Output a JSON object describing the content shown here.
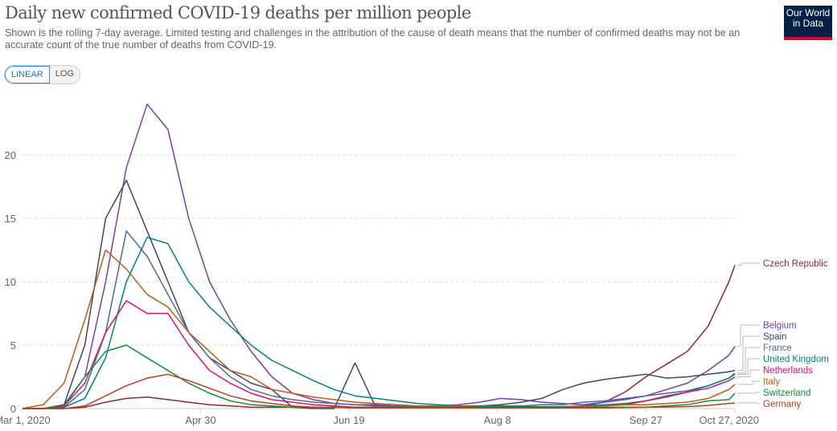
{
  "header": {
    "title": "Daily new confirmed COVID-19 deaths per million people",
    "subtitle": "Shown is the rolling 7-day average. Limited testing and challenges in the attribution of the cause of death means that the number of confirmed deaths may not be an accurate count of the true number of deaths from COVID-19.",
    "logo": "Our World in Data",
    "logo_line1": "Our World",
    "logo_line2": "in Data"
  },
  "scale_toggle": {
    "linear": "LINEAR",
    "log": "LOG",
    "selected": "LINEAR"
  },
  "chart_data": {
    "type": "line",
    "title": "Daily new confirmed COVID-19 deaths per million people",
    "ylim": [
      0,
      25
    ],
    "yticks": [
      0,
      5,
      10,
      15,
      20
    ],
    "grid": "horizontal dashed",
    "legend": "right, end-of-line labels",
    "xticks": [
      {
        "label": "Mar 1, 2020",
        "date": "2020-03-01"
      },
      {
        "label": "Apr 30",
        "date": "2020-04-30"
      },
      {
        "label": "Jun 19",
        "date": "2020-06-19"
      },
      {
        "label": "Aug 8",
        "date": "2020-08-08"
      },
      {
        "label": "Sep 27",
        "date": "2020-09-27"
      },
      {
        "label": "Oct 27, 2020",
        "date": "2020-10-27"
      }
    ],
    "xrange": [
      "2020-03-01",
      "2020-10-27"
    ],
    "x": [
      "2020-03-01",
      "2020-03-08",
      "2020-03-15",
      "2020-03-22",
      "2020-03-29",
      "2020-04-05",
      "2020-04-12",
      "2020-04-19",
      "2020-04-26",
      "2020-05-03",
      "2020-05-10",
      "2020-05-17",
      "2020-05-24",
      "2020-05-31",
      "2020-06-07",
      "2020-06-14",
      "2020-06-21",
      "2020-06-28",
      "2020-07-05",
      "2020-07-12",
      "2020-07-19",
      "2020-07-26",
      "2020-08-02",
      "2020-08-09",
      "2020-08-16",
      "2020-08-23",
      "2020-08-30",
      "2020-09-06",
      "2020-09-13",
      "2020-09-20",
      "2020-09-27",
      "2020-10-04",
      "2020-10-11",
      "2020-10-18",
      "2020-10-25",
      "2020-10-27"
    ],
    "series": [
      {
        "name": "Czech Republic",
        "color": "#8b2a3c",
        "values": [
          0,
          0,
          0,
          0.1,
          0.5,
          0.8,
          0.9,
          0.7,
          0.5,
          0.3,
          0.2,
          0.1,
          0.1,
          0.1,
          0.1,
          0.1,
          0.1,
          0.1,
          0.1,
          0.1,
          0.1,
          0.1,
          0.1,
          0.1,
          0.1,
          0.1,
          0.1,
          0.2,
          0.5,
          1.3,
          2.5,
          3.5,
          4.5,
          6.5,
          10,
          11.3
        ]
      },
      {
        "name": "Belgium",
        "color": "#7a3fa1",
        "values": [
          0,
          0,
          0.2,
          2.5,
          10,
          19,
          24,
          22,
          15,
          10,
          7,
          4.5,
          2.5,
          1.2,
          0.7,
          0.4,
          0.3,
          0.3,
          0.2,
          0.2,
          0.2,
          0.3,
          0.5,
          0.8,
          0.7,
          0.5,
          0.4,
          0.3,
          0.5,
          0.7,
          1.0,
          1.5,
          2.0,
          3.0,
          4.2,
          4.9
        ]
      },
      {
        "name": "Spain",
        "color": "#3b4a62",
        "values": [
          0,
          0,
          0.3,
          5,
          15,
          18,
          14,
          10,
          6,
          4,
          3,
          2,
          1.5,
          0.1,
          0,
          0,
          3.6,
          0.1,
          0.1,
          0.1,
          0.1,
          0.1,
          0.2,
          0.3,
          0.5,
          0.8,
          1.5,
          2.0,
          2.3,
          2.5,
          2.7,
          2.4,
          2.5,
          2.7,
          2.9,
          3.0
        ]
      },
      {
        "name": "France",
        "color": "#4c6a9c",
        "values": [
          0,
          0,
          0.1,
          1.5,
          6,
          14,
          12,
          9,
          6,
          4,
          2.5,
          1.5,
          1,
          0.7,
          0.5,
          0.4,
          0.3,
          0.2,
          0.2,
          0.2,
          0.2,
          0.2,
          0.2,
          0.2,
          0.2,
          0.3,
          0.3,
          0.5,
          0.6,
          0.8,
          1.0,
          1.2,
          1.4,
          1.8,
          2.4,
          2.8
        ]
      },
      {
        "name": "United Kingdom",
        "color": "#00847e",
        "values": [
          0,
          0,
          0.1,
          0.8,
          4,
          10,
          13.5,
          13,
          10,
          8,
          6.5,
          5,
          3.8,
          3,
          2.2,
          1.5,
          1.0,
          0.8,
          0.6,
          0.4,
          0.3,
          0.2,
          0.15,
          0.15,
          0.15,
          0.15,
          0.15,
          0.2,
          0.3,
          0.4,
          0.6,
          0.9,
          1.3,
          1.8,
          2.4,
          2.7
        ]
      },
      {
        "name": "Netherlands",
        "color": "#e0116b",
        "values": [
          0,
          0,
          0.2,
          2,
          6,
          8.5,
          7.5,
          7.5,
          5,
          3,
          2,
          1.2,
          0.7,
          0.5,
          0.3,
          0.2,
          0.1,
          0.1,
          0.1,
          0.1,
          0.1,
          0.1,
          0.1,
          0.1,
          0.1,
          0.1,
          0.1,
          0.1,
          0.2,
          0.3,
          0.6,
          1.0,
          1.3,
          1.6,
          2.2,
          2.5
        ]
      },
      {
        "name": "Italy",
        "color": "#c15a15",
        "values": [
          0,
          0.3,
          2,
          7,
          12.5,
          11,
          9,
          8,
          6,
          4.5,
          3,
          2.5,
          1.5,
          1.2,
          0.9,
          0.7,
          0.5,
          0.4,
          0.3,
          0.2,
          0.2,
          0.2,
          0.1,
          0.1,
          0.1,
          0.1,
          0.1,
          0.2,
          0.2,
          0.3,
          0.3,
          0.4,
          0.5,
          0.8,
          1.5,
          1.9
        ]
      },
      {
        "name": "Switzerland",
        "color": "#178a3b",
        "values": [
          0,
          0,
          0.3,
          2.5,
          4.5,
          5,
          4,
          3,
          2,
          1.2,
          0.6,
          0.3,
          0.2,
          0.1,
          0.1,
          0.1,
          0.1,
          0.1,
          0.1,
          0.1,
          0.1,
          0.1,
          0.1,
          0.1,
          0.1,
          0.1,
          0.1,
          0.1,
          0.1,
          0.1,
          0.1,
          0.2,
          0.3,
          0.6,
          0.7,
          1.2
        ]
      },
      {
        "name": "Germany",
        "color": "#b8401a",
        "values": [
          0,
          0,
          0,
          0.2,
          1,
          1.8,
          2.4,
          2.7,
          2.2,
          1.6,
          1,
          0.6,
          0.4,
          0.2,
          0.1,
          0.1,
          0.05,
          0.05,
          0.05,
          0.05,
          0.05,
          0.05,
          0.05,
          0.05,
          0.05,
          0.05,
          0.05,
          0.05,
          0.05,
          0.08,
          0.1,
          0.12,
          0.15,
          0.25,
          0.4,
          0.45
        ]
      }
    ]
  }
}
